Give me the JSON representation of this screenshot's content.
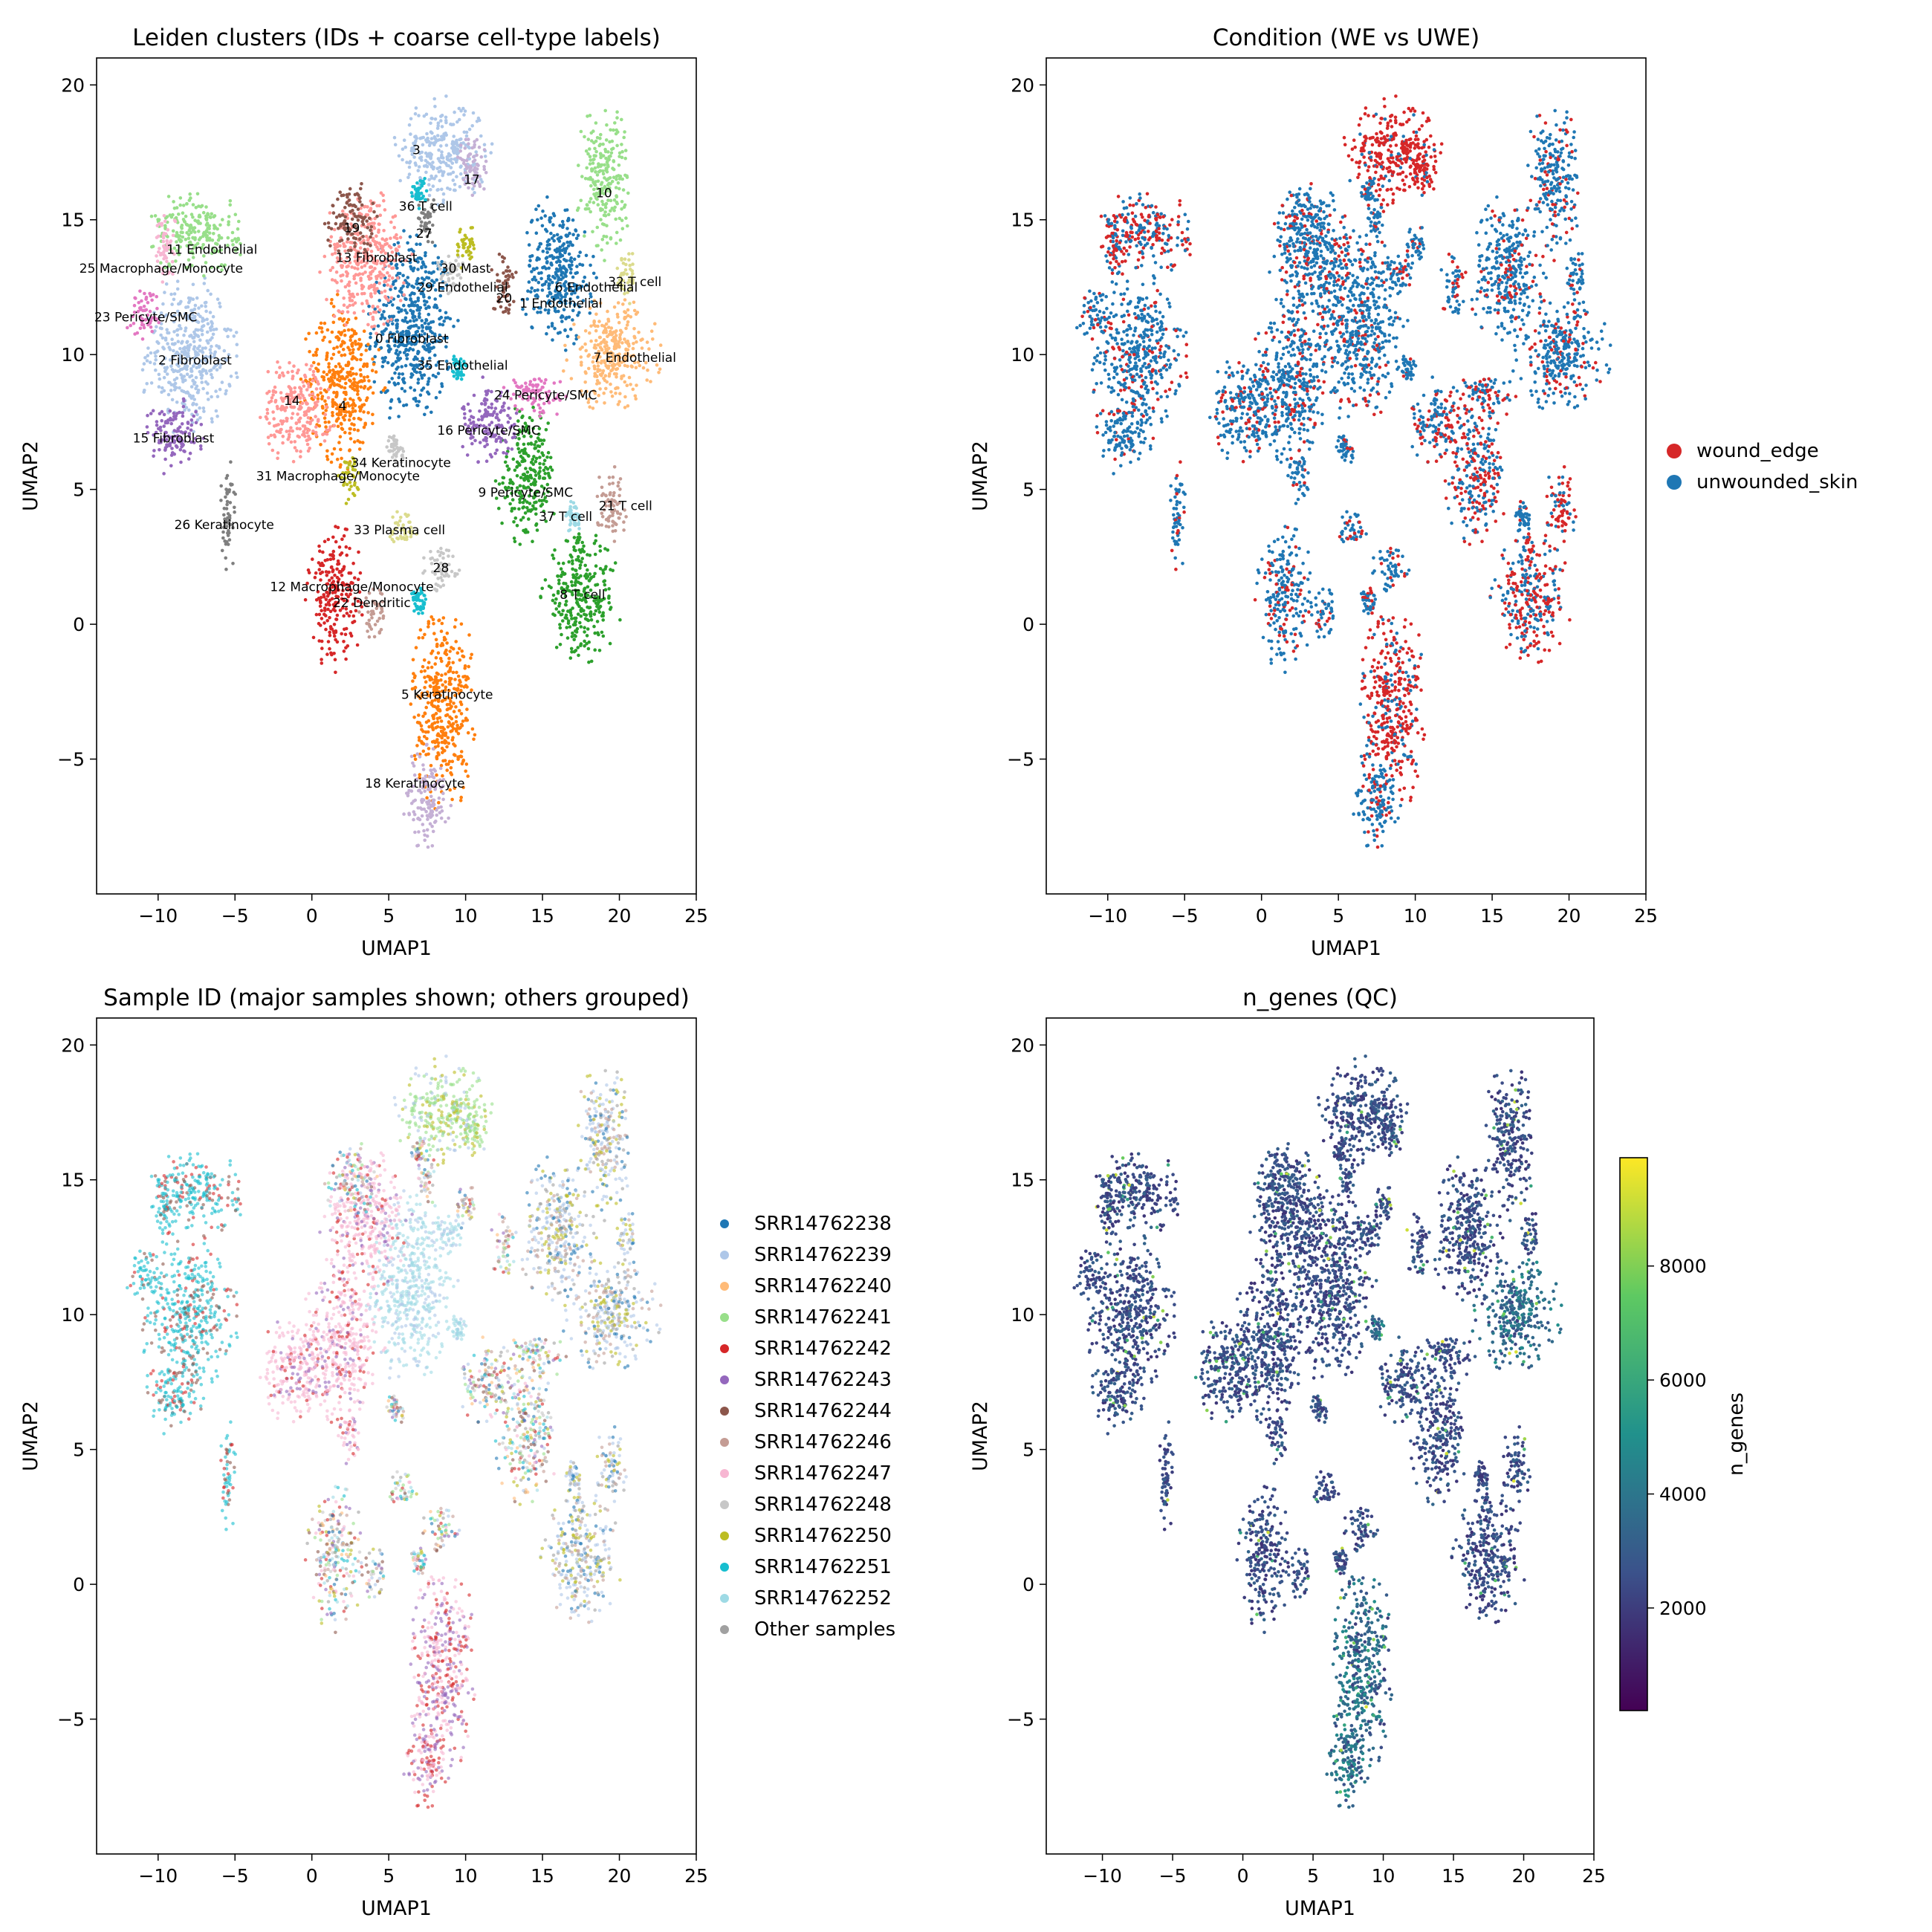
{
  "chart_data": [
    {
      "type": "scatter",
      "title": "Leiden clusters (IDs + coarse cell-type labels)",
      "xlabel": "UMAP1",
      "ylabel": "UMAP2",
      "xlim": [
        -14,
        25
      ],
      "ylim": [
        -10,
        21
      ],
      "xticks": [
        -10,
        -5,
        0,
        5,
        10,
        15,
        20,
        25
      ],
      "yticks": [
        -5,
        0,
        5,
        10,
        15,
        20
      ],
      "grid": false,
      "clusters": [
        {
          "x": 6.5,
          "y": 11.0,
          "rx": 2.6,
          "ry": 3.4,
          "color": "#1f77b4"
        },
        {
          "x": -8.0,
          "y": 10.0,
          "rx": 2.8,
          "ry": 2.6,
          "color": "#aec7e8"
        },
        {
          "x": 2.0,
          "y": 9.0,
          "rx": 2.4,
          "ry": 2.8,
          "color": "#ff7f0e"
        },
        {
          "x": 8.5,
          "y": 17.5,
          "rx": 2.8,
          "ry": 1.8,
          "color": "#aec7e8"
        },
        {
          "x": 8.5,
          "y": -3.0,
          "rx": 1.9,
          "ry": 3.6,
          "color": "#ff7f0e"
        },
        {
          "x": 16.0,
          "y": 13.0,
          "rx": 2.2,
          "ry": 2.6,
          "color": "#1f77b4"
        },
        {
          "x": 19.5,
          "y": 10.0,
          "rx": 2.8,
          "ry": 1.9,
          "color": "#ffbb78"
        },
        {
          "x": 17.5,
          "y": 1.0,
          "rx": 2.4,
          "ry": 2.2,
          "color": "#2ca02c"
        },
        {
          "x": 14.0,
          "y": 5.5,
          "rx": 1.8,
          "ry": 2.4,
          "color": "#2ca02c"
        },
        {
          "x": 19.0,
          "y": 16.5,
          "rx": 1.6,
          "ry": 2.6,
          "color": "#98df8a"
        },
        {
          "x": -7.5,
          "y": 14.5,
          "rx": 2.8,
          "ry": 1.4,
          "color": "#98df8a"
        },
        {
          "x": 1.5,
          "y": 1.0,
          "rx": 1.7,
          "ry": 2.4,
          "color": "#d62728"
        },
        {
          "x": 3.5,
          "y": 13.5,
          "rx": 2.6,
          "ry": 2.4,
          "color": "#ff9896"
        },
        {
          "x": -1.0,
          "y": 8.0,
          "rx": 2.3,
          "ry": 1.8,
          "color": "#ff9896"
        },
        {
          "x": -9.0,
          "y": 7.0,
          "rx": 1.7,
          "ry": 1.3,
          "color": "#9467bd"
        },
        {
          "x": 11.5,
          "y": 7.5,
          "rx": 1.8,
          "ry": 1.5,
          "color": "#9467bd"
        },
        {
          "x": 10.5,
          "y": 17.0,
          "rx": 1.0,
          "ry": 1.3,
          "color": "#c5b0d5"
        },
        {
          "x": 7.5,
          "y": -6.5,
          "rx": 1.4,
          "ry": 1.8,
          "color": "#c5b0d5"
        },
        {
          "x": 2.5,
          "y": 15.0,
          "rx": 1.5,
          "ry": 1.3,
          "color": "#8c564b"
        },
        {
          "x": 12.5,
          "y": 12.5,
          "rx": 0.8,
          "ry": 1.2,
          "color": "#8c564b"
        },
        {
          "x": 19.5,
          "y": 4.5,
          "rx": 1.0,
          "ry": 1.3,
          "color": "#c49c94"
        },
        {
          "x": 4.0,
          "y": 0.5,
          "rx": 0.8,
          "ry": 1.0,
          "color": "#c49c94"
        },
        {
          "x": 14.5,
          "y": 8.5,
          "rx": 1.9,
          "ry": 0.8,
          "color": "#e377c2"
        },
        {
          "x": -11.0,
          "y": 11.5,
          "rx": 1.0,
          "ry": 1.0,
          "color": "#e377c2"
        },
        {
          "x": -9.5,
          "y": 14.0,
          "rx": 0.8,
          "ry": 1.2,
          "color": "#f7b6d2"
        },
        {
          "x": -5.5,
          "y": 4.0,
          "rx": 0.5,
          "ry": 2.0,
          "color": "#7f7f7f"
        },
        {
          "x": 7.5,
          "y": 15.0,
          "rx": 0.6,
          "ry": 0.9,
          "color": "#7f7f7f"
        },
        {
          "x": 8.5,
          "y": 2.0,
          "rx": 1.2,
          "ry": 0.8,
          "color": "#c7c7c7"
        },
        {
          "x": 9.0,
          "y": 13.0,
          "rx": 0.8,
          "ry": 0.7,
          "color": "#c7c7c7"
        },
        {
          "x": 10.0,
          "y": 14.0,
          "rx": 0.6,
          "ry": 0.8,
          "color": "#bcbd22"
        },
        {
          "x": 2.5,
          "y": 5.5,
          "rx": 0.7,
          "ry": 1.0,
          "color": "#bcbd22"
        },
        {
          "x": 20.5,
          "y": 13.0,
          "rx": 0.6,
          "ry": 1.0,
          "color": "#dbdb8d"
        },
        {
          "x": 6.0,
          "y": 3.5,
          "rx": 1.0,
          "ry": 0.7,
          "color": "#dbdb8d"
        },
        {
          "x": 5.5,
          "y": 6.5,
          "rx": 0.6,
          "ry": 0.6,
          "color": "#c7c7c7"
        },
        {
          "x": 9.5,
          "y": 9.5,
          "rx": 0.5,
          "ry": 0.5,
          "color": "#17becf"
        },
        {
          "x": 7.0,
          "y": 16.0,
          "rx": 0.5,
          "ry": 0.6,
          "color": "#17becf"
        },
        {
          "x": 17.0,
          "y": 4.0,
          "rx": 0.6,
          "ry": 0.6,
          "color": "#9edae5"
        },
        {
          "x": 7.0,
          "y": 0.8,
          "rx": 0.5,
          "ry": 0.6,
          "color": "#17becf"
        }
      ],
      "annotations": [
        {
          "text": "3",
          "x": 6.8,
          "y": 17.6
        },
        {
          "text": "17",
          "x": 10.4,
          "y": 16.5
        },
        {
          "text": "10",
          "x": 19.0,
          "y": 16.0
        },
        {
          "text": "36 T cell",
          "x": 7.4,
          "y": 15.5
        },
        {
          "text": "19",
          "x": 2.6,
          "y": 14.7
        },
        {
          "text": "27",
          "x": 7.3,
          "y": 14.5
        },
        {
          "text": "11 Endothelial",
          "x": -6.5,
          "y": 13.9
        },
        {
          "text": "13 Fibroblast",
          "x": 4.2,
          "y": 13.6
        },
        {
          "text": "25 Macrophage/Monocyte",
          "x": -9.8,
          "y": 13.2
        },
        {
          "text": "30 Mast",
          "x": 10.0,
          "y": 13.2
        },
        {
          "text": "29 Endothelial",
          "x": 9.8,
          "y": 12.5
        },
        {
          "text": "6 Endothelial",
          "x": 18.5,
          "y": 12.5
        },
        {
          "text": "32 T cell",
          "x": 21.0,
          "y": 12.7
        },
        {
          "text": "20",
          "x": 12.5,
          "y": 12.1
        },
        {
          "text": "1 Endothelial",
          "x": 16.2,
          "y": 11.9
        },
        {
          "text": "23 Pericyte/SMC",
          "x": -10.8,
          "y": 11.4
        },
        {
          "text": "0 Fibroblast",
          "x": 6.5,
          "y": 10.6
        },
        {
          "text": "2 Fibroblast",
          "x": -7.6,
          "y": 9.8
        },
        {
          "text": "7 Endothelial",
          "x": 21.0,
          "y": 9.9
        },
        {
          "text": "35 Endothelial",
          "x": 9.8,
          "y": 9.6
        },
        {
          "text": "24 Pericyte/SMC",
          "x": 15.2,
          "y": 8.5
        },
        {
          "text": "14",
          "x": -1.3,
          "y": 8.3
        },
        {
          "text": "4",
          "x": 2.0,
          "y": 8.1
        },
        {
          "text": "16 Pericyte/SMC",
          "x": 11.5,
          "y": 7.2
        },
        {
          "text": "15 Fibroblast",
          "x": -9.0,
          "y": 6.9
        },
        {
          "text": "34 Keratinocyte",
          "x": 5.8,
          "y": 6.0
        },
        {
          "text": "31 Macrophage/Monocyte",
          "x": 1.7,
          "y": 5.5
        },
        {
          "text": "9 Pericyte/SMC",
          "x": 13.9,
          "y": 4.9
        },
        {
          "text": "21 T cell",
          "x": 20.4,
          "y": 4.4
        },
        {
          "text": "37 T cell",
          "x": 16.5,
          "y": 4.0
        },
        {
          "text": "26 Keratinocyte",
          "x": -5.7,
          "y": 3.7
        },
        {
          "text": "33 Plasma cell",
          "x": 5.7,
          "y": 3.5
        },
        {
          "text": "28",
          "x": 8.4,
          "y": 2.1
        },
        {
          "text": "12 Macrophage/Monocyte",
          "x": 2.6,
          "y": 1.4
        },
        {
          "text": "22 Dendritic",
          "x": 3.9,
          "y": 0.8
        },
        {
          "text": "8 T cell",
          "x": 17.6,
          "y": 1.1
        },
        {
          "text": "5 Keratinocyte",
          "x": 8.8,
          "y": -2.6
        },
        {
          "text": "18 Keratinocyte",
          "x": 6.7,
          "y": -5.9
        }
      ]
    },
    {
      "type": "scatter",
      "title": "Condition (WE vs UWE)",
      "xlabel": "UMAP1",
      "ylabel": "UMAP2",
      "xlim": [
        -14,
        25
      ],
      "ylim": [
        -10,
        21
      ],
      "xticks": [
        -10,
        -5,
        0,
        5,
        10,
        15,
        20,
        25
      ],
      "yticks": [
        -5,
        0,
        5,
        10,
        15,
        20
      ],
      "grid": false,
      "legend_position": "right",
      "series": [
        {
          "name": "wound_edge",
          "color": "#d62728"
        },
        {
          "name": "unwounded_skin",
          "color": "#1f77b4"
        }
      ]
    },
    {
      "type": "scatter",
      "title": "Sample ID (major samples shown; others grouped)",
      "xlabel": "UMAP1",
      "ylabel": "UMAP2",
      "xlim": [
        -14,
        25
      ],
      "ylim": [
        -10,
        21
      ],
      "xticks": [
        -10,
        -5,
        0,
        5,
        10,
        15,
        20,
        25
      ],
      "yticks": [
        -5,
        0,
        5,
        10,
        15,
        20
      ],
      "grid": false,
      "legend_position": "right",
      "series": [
        {
          "name": "SRR14762238",
          "color": "#1f77b4"
        },
        {
          "name": "SRR14762239",
          "color": "#aec7e8"
        },
        {
          "name": "SRR14762240",
          "color": "#ffbb78"
        },
        {
          "name": "SRR14762241",
          "color": "#98df8a"
        },
        {
          "name": "SRR14762242",
          "color": "#d62728"
        },
        {
          "name": "SRR14762243",
          "color": "#9467bd"
        },
        {
          "name": "SRR14762244",
          "color": "#8c564b"
        },
        {
          "name": "SRR14762246",
          "color": "#c49c94"
        },
        {
          "name": "SRR14762247",
          "color": "#f7b6d2"
        },
        {
          "name": "SRR14762248",
          "color": "#c7c7c7"
        },
        {
          "name": "SRR14762250",
          "color": "#bcbd22"
        },
        {
          "name": "SRR14762251",
          "color": "#17becf"
        },
        {
          "name": "SRR14762252",
          "color": "#9edae5"
        },
        {
          "name": "Other samples",
          "color": "#a0a0a0"
        }
      ]
    },
    {
      "type": "scatter",
      "title": "n_genes (QC)",
      "xlabel": "UMAP1",
      "ylabel": "UMAP2",
      "xlim": [
        -14,
        25
      ],
      "ylim": [
        -10,
        21
      ],
      "xticks": [
        -10,
        -5,
        0,
        5,
        10,
        15,
        20,
        25
      ],
      "yticks": [
        -5,
        0,
        5,
        10,
        15,
        20
      ],
      "grid": false,
      "colorbar": {
        "label": "n_genes",
        "range": [
          200,
          9900
        ],
        "ticks": [
          2000,
          4000,
          6000,
          8000
        ],
        "colormap": [
          "#440154",
          "#3b528b",
          "#21918c",
          "#5ec962",
          "#fde725"
        ]
      }
    }
  ]
}
